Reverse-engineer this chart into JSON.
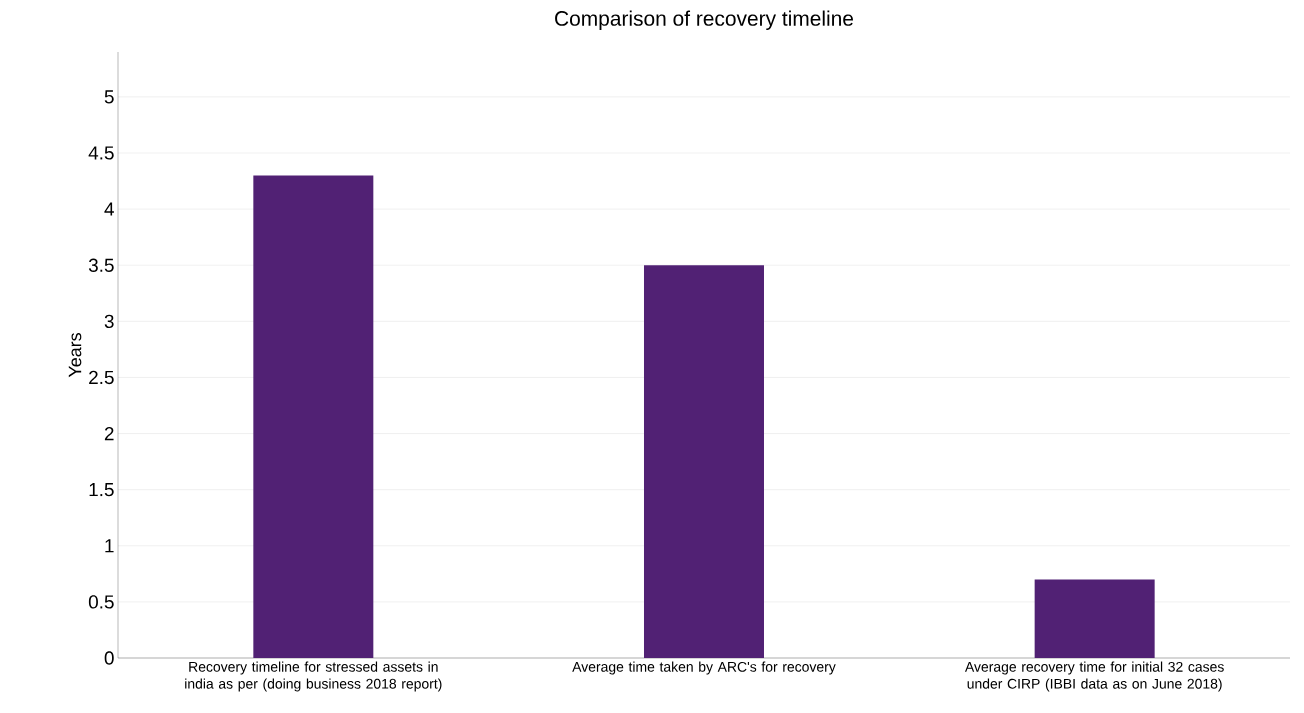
{
  "chart_data": {
    "type": "bar",
    "title": "Comparison of recovery timeline",
    "ylabel": "Years",
    "categories": [
      "Recovery timeline for stressed assets in india as per (doing business 2018 report)",
      "Average time taken by ARC's for recovery",
      "Average recovery time for initial 32 cases under CIRP (IBBI data as on June 2018)"
    ],
    "values": [
      4.3,
      3.5,
      0.7
    ],
    "color": "#512174",
    "ylim": [
      0,
      5.4
    ],
    "yticks": [
      0,
      0.5,
      1,
      1.5,
      2,
      2.5,
      3,
      3.5,
      4,
      4.5,
      5
    ],
    "grid": "y"
  }
}
